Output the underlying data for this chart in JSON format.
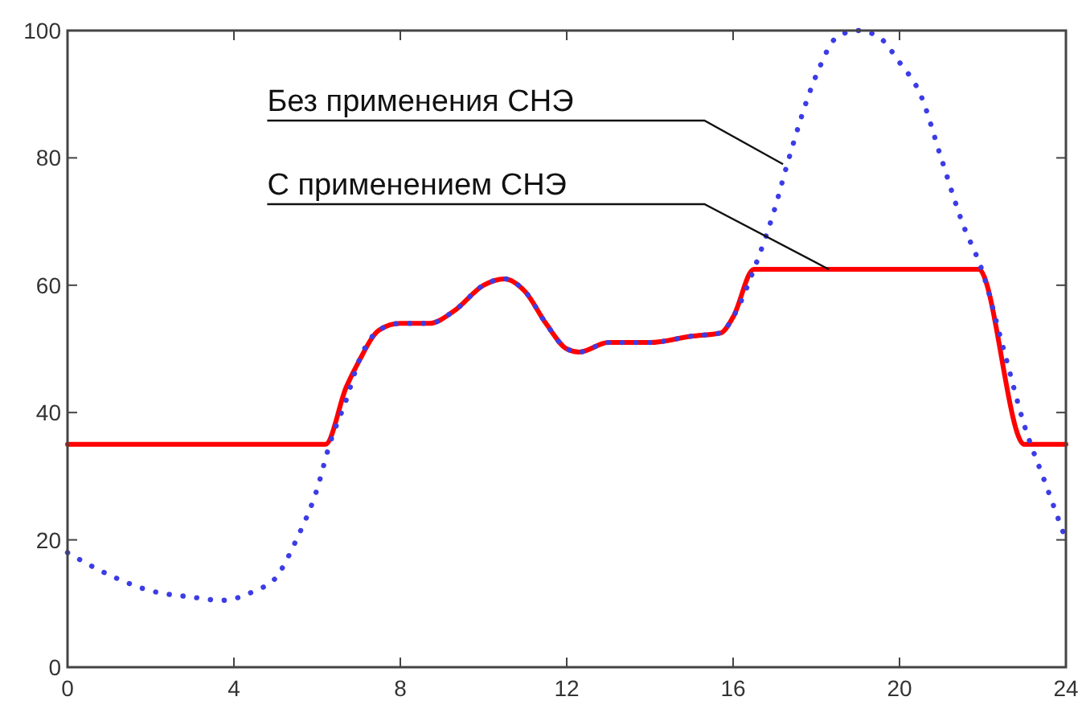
{
  "chart_data": {
    "type": "line",
    "xlim": [
      0,
      24
    ],
    "ylim": [
      0,
      100
    ],
    "xticks": [
      0,
      4,
      8,
      12,
      16,
      20,
      24
    ],
    "yticks": [
      0,
      20,
      40,
      60,
      80,
      100
    ],
    "grid": false,
    "series": [
      {
        "color": "#ff0000",
        "line_style": "solid",
        "x": [
          0,
          6.2,
          6.7,
          7,
          7.5,
          8,
          8.7,
          9.3,
          10,
          10.5,
          11,
          11.5,
          12,
          12.3,
          13,
          14,
          15,
          15.7,
          16,
          16.5,
          21.9,
          23,
          24
        ],
        "values": [
          35,
          35,
          44,
          48,
          53,
          54,
          54,
          56,
          60,
          61,
          59,
          54,
          50,
          49.5,
          51,
          51,
          52,
          52.5,
          55,
          62.5,
          62.5,
          35,
          35
        ]
      },
      {
        "color": "#3c3ce6",
        "line_style": "dotted",
        "x": [
          0,
          1,
          2,
          3,
          3.7,
          4.5,
          5,
          5.5,
          6,
          6.3,
          6.7,
          7,
          7.5,
          8,
          8.7,
          9.3,
          10,
          10.5,
          11,
          11.5,
          12,
          12.3,
          13,
          14,
          15,
          15.7,
          16,
          16.5,
          17,
          17.3,
          18,
          18.5,
          19,
          19.5,
          20,
          20.5,
          21,
          21.5,
          22,
          22.5,
          23,
          23.5,
          24
        ],
        "values": [
          18,
          14.5,
          12,
          11,
          10.5,
          12,
          14,
          20,
          28,
          35,
          42,
          48,
          53,
          54,
          54,
          56,
          60,
          61,
          59,
          54,
          50,
          49.5,
          51,
          51,
          52,
          52.5,
          55,
          62.5,
          72,
          79,
          93,
          99,
          100,
          99,
          95,
          90,
          80,
          70,
          62,
          50,
          38,
          29,
          20
        ]
      }
    ],
    "annotations": [
      {
        "text": "Без применения СНЭ",
        "x": 17.2,
        "y": 79
      },
      {
        "text": "С применением СНЭ",
        "x": 18.3,
        "y": 62.5
      }
    ]
  }
}
